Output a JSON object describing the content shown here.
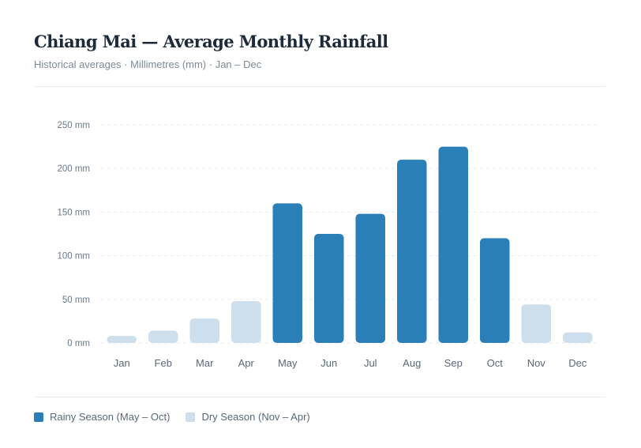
{
  "header": {
    "title": "Chiang Mai — Average Monthly Rainfall",
    "subtitle": "Historical averages · Millimetres (mm) · Jan – Dec"
  },
  "legend": {
    "rainy": {
      "label": "Rainy Season (May – Oct)",
      "color": "#2a7fb8"
    },
    "dry": {
      "label": "Dry Season (Nov – Apr)",
      "color": "#cddeed"
    }
  },
  "chart_data": {
    "type": "bar",
    "title": "Chiang Mai — Average Monthly Rainfall",
    "xlabel": "",
    "ylabel": "",
    "categories": [
      "Jan",
      "Feb",
      "Mar",
      "Apr",
      "May",
      "Jun",
      "Jul",
      "Aug",
      "Sep",
      "Oct",
      "Nov",
      "Dec"
    ],
    "values": [
      8,
      14,
      28,
      48,
      160,
      125,
      148,
      210,
      225,
      120,
      44,
      12
    ],
    "season": [
      "dry",
      "dry",
      "dry",
      "dry",
      "rainy",
      "rainy",
      "rainy",
      "rainy",
      "rainy",
      "rainy",
      "dry",
      "dry"
    ],
    "ylim": [
      0,
      250
    ],
    "yticks": [
      0,
      50,
      100,
      150,
      200,
      250
    ],
    "ytick_labels": [
      "0 mm",
      "50 mm",
      "100 mm",
      "150 mm",
      "200 mm",
      "250 mm"
    ],
    "grid": true,
    "legend_position": "bottom-left",
    "colors": {
      "rainy": "#2a7fb8",
      "dry": "#cddeed",
      "grid": "#e6eaee",
      "tick_text": "#6b7a8a"
    }
  }
}
